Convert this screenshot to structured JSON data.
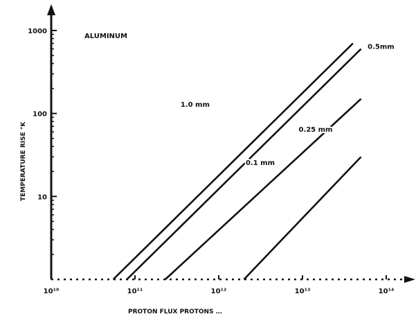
{
  "chart_data": {
    "type": "line",
    "title": "ALUMINUM",
    "xlabel": "PROTON FLUX PROTONS …",
    "ylabel": "TEMPERATURE RISE °K",
    "x_scale": "log",
    "y_scale": "log",
    "y_ticks": [
      {
        "value": 1000,
        "label": "1000"
      },
      {
        "value": 100,
        "label": "100"
      },
      {
        "value": 10,
        "label": "10"
      }
    ],
    "x_ticks": [
      {
        "value": 10000000000.0,
        "label": "10¹⁰"
      },
      {
        "value": 100000000000.0,
        "label": "10¹¹"
      },
      {
        "value": 1000000000000.0,
        "label": "10¹²"
      },
      {
        "value": 10000000000000.0,
        "label": "10¹³"
      },
      {
        "value": 100000000000000.0,
        "label": "10¹⁴"
      }
    ],
    "xlim": [
      10000000000.0,
      100000000000000.0
    ],
    "ylim": [
      1,
      1000
    ],
    "series": [
      {
        "name": "1.0 mm",
        "label_pos": [
          350000000000.0,
          120
        ],
        "points": [
          [
            55000000000.0,
            1
          ],
          [
            40000000000000.0,
            700
          ]
        ]
      },
      {
        "name": "0.5mm",
        "label_pos": [
          60000000000000.0,
          600
        ],
        "points": [
          [
            80000000000.0,
            1
          ],
          [
            50000000000000.0,
            600
          ]
        ]
      },
      {
        "name": "0.25 mm",
        "label_pos": [
          9000000000000.0,
          60
        ],
        "points": [
          [
            230000000000.0,
            1
          ],
          [
            50000000000000.0,
            150
          ]
        ]
      },
      {
        "name": "0.1 mm",
        "label_pos": [
          2100000000000.0,
          24
        ],
        "points": [
          [
            2000000000000.0,
            1
          ],
          [
            50000000000000.0,
            30
          ]
        ]
      }
    ],
    "grid": false
  }
}
